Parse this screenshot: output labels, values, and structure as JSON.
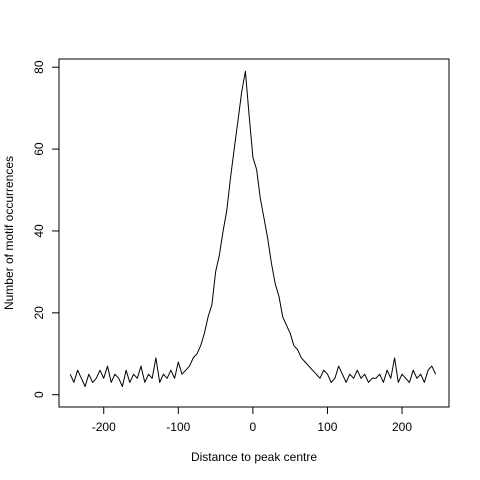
{
  "chart_data": {
    "type": "line",
    "title": "",
    "xlabel": "Distance to peak centre",
    "ylabel": "Number of motif occurrences",
    "xlim": [
      -260,
      263
    ],
    "ylim": [
      -3,
      82
    ],
    "x_ticks": [
      -200,
      -100,
      0,
      100,
      200
    ],
    "y_ticks": [
      0,
      20,
      40,
      60,
      80
    ],
    "x_tick_labels": [
      "-200",
      "-100",
      "0",
      "100",
      "200"
    ],
    "y_tick_labels": [
      "0",
      "20",
      "40",
      "60",
      "80"
    ],
    "grid": false,
    "legend": "none",
    "line_color": "#000000",
    "series": [
      {
        "x": [
          -245,
          -240,
          -235,
          -230,
          -225,
          -220,
          -215,
          -210,
          -205,
          -200,
          -195,
          -190,
          -185,
          -180,
          -175,
          -170,
          -165,
          -160,
          -155,
          -150,
          -145,
          -140,
          -135,
          -130,
          -125,
          -120,
          -115,
          -110,
          -105,
          -100,
          -95,
          -90,
          -85,
          -80,
          -75,
          -70,
          -65,
          -60,
          -55,
          -50,
          -45,
          -40,
          -35,
          -30,
          -25,
          -20,
          -15,
          -10,
          -5,
          0,
          5,
          10,
          15,
          20,
          25,
          30,
          35,
          40,
          45,
          50,
          55,
          60,
          65,
          70,
          75,
          80,
          85,
          90,
          95,
          100,
          105,
          110,
          115,
          120,
          125,
          130,
          135,
          140,
          145,
          150,
          155,
          160,
          165,
          170,
          175,
          180,
          185,
          190,
          195,
          200,
          205,
          210,
          215,
          220,
          225,
          230,
          235,
          240,
          245
        ],
        "values": [
          5,
          3,
          6,
          4,
          2,
          5,
          3,
          4,
          6,
          4,
          7,
          3,
          5,
          4,
          2,
          6,
          3,
          5,
          4,
          7,
          3,
          5,
          4,
          9,
          3,
          5,
          4,
          6,
          4,
          8,
          5,
          6,
          7,
          9,
          10,
          12,
          15,
          19,
          22,
          30,
          34,
          40,
          45,
          53,
          60,
          67,
          74,
          79,
          68,
          58,
          55,
          48,
          43,
          38,
          32,
          27,
          24,
          19,
          17,
          15,
          12,
          11,
          9,
          8,
          7,
          6,
          5,
          4,
          6,
          5,
          3,
          4,
          7,
          5,
          3,
          5,
          4,
          6,
          4,
          5,
          3,
          4,
          4,
          5,
          3,
          6,
          4,
          9,
          3,
          5,
          4,
          3,
          6,
          4,
          5,
          3,
          6,
          7,
          5
        ]
      }
    ]
  }
}
